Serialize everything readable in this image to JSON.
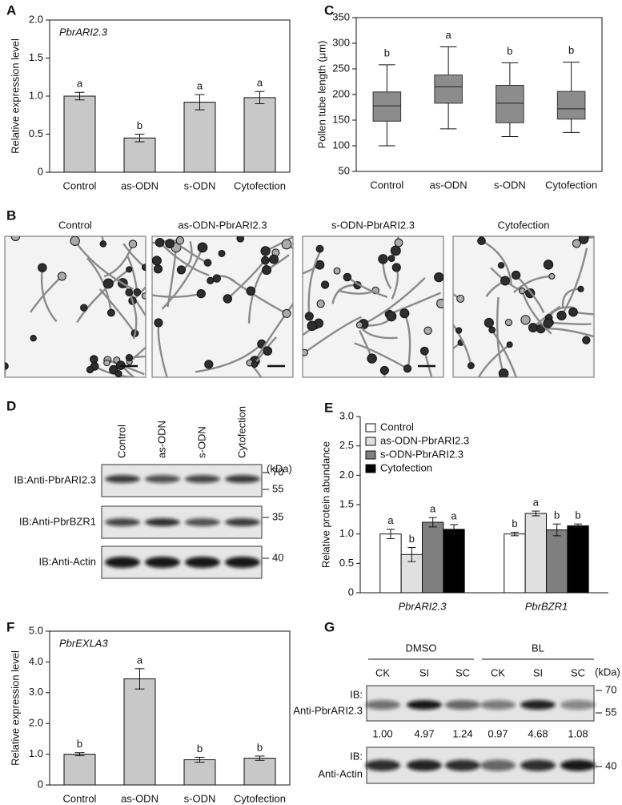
{
  "chart_data": [
    {
      "type": "bar",
      "panel": "A",
      "title": "PbrARI2.3",
      "ylabel": "Relative expression level",
      "categories": [
        "Control",
        "as-ODN",
        "s-ODN",
        "Cytofection"
      ],
      "values": [
        1.0,
        0.45,
        0.92,
        0.98
      ],
      "errors": [
        0.05,
        0.05,
        0.1,
        0.08
      ],
      "letters": [
        "a",
        "b",
        "a",
        "a"
      ],
      "color": "#c8c8c8",
      "ylim": [
        0,
        2
      ],
      "yticks": [
        0,
        0.5,
        {
          "value": 1,
          "label": "1.0"
        },
        1.5,
        {
          "value": 2,
          "label": "2.0"
        }
      ]
    },
    {
      "type": "box",
      "panel": "C",
      "ylabel": "Pollen tube length (μm)",
      "categories": [
        "Control",
        "as-ODN",
        "s-ODN",
        "Cytofection"
      ],
      "boxes": [
        {
          "whislo": 100,
          "q1": 148,
          "med": 178,
          "q3": 205,
          "whishi": 258
        },
        {
          "whislo": 133,
          "q1": 183,
          "med": 215,
          "q3": 238,
          "whishi": 293
        },
        {
          "whislo": 118,
          "q1": 145,
          "med": 183,
          "q3": 218,
          "whishi": 262
        },
        {
          "whislo": 126,
          "q1": 152,
          "med": 172,
          "q3": 206,
          "whishi": 263
        }
      ],
      "letters": [
        "b",
        "a",
        "b",
        "b"
      ],
      "color": "#8c8c8c",
      "ylim": [
        50,
        350
      ],
      "yticks": [
        50,
        100,
        150,
        200,
        250,
        300,
        350
      ]
    },
    {
      "type": "grouped_bar",
      "panel": "E",
      "ylabel": "Relative protein abundance",
      "categories": [
        "PbrARI2.3",
        "PbrBZR1"
      ],
      "legend": "upper-left",
      "series": [
        {
          "name": "Control",
          "color": "#ffffff",
          "values": [
            1.0,
            1.0
          ],
          "errors": [
            0.08,
            0.03
          ],
          "letters": [
            "a",
            "b"
          ]
        },
        {
          "name": "as-ODN-PbrARI2.3",
          "color": "#e0e0e0",
          "values": [
            0.65,
            1.35
          ],
          "errors": [
            0.12,
            0.04
          ],
          "letters": [
            "b",
            "a"
          ]
        },
        {
          "name": "s-ODN-PbrARI2.3",
          "color": "#7f7f7f",
          "values": [
            1.2,
            1.07
          ],
          "errors": [
            0.08,
            0.1
          ],
          "letters": [
            "a",
            "b"
          ]
        },
        {
          "name": "Cytofection",
          "color": "#000000",
          "values": [
            1.08,
            1.14
          ],
          "errors": [
            0.08,
            0.03
          ],
          "letters": [
            "a",
            "b"
          ]
        }
      ],
      "ylim": [
        0,
        3
      ],
      "yticks": [
        0,
        0.5,
        {
          "value": 1,
          "label": "1.0"
        },
        1.5,
        {
          "value": 2,
          "label": "2.0"
        },
        2.5,
        {
          "value": 3,
          "label": "3.0"
        }
      ]
    },
    {
      "type": "bar",
      "panel": "F",
      "title": "PbrEXLA3",
      "ylabel": "Relative expression level",
      "categories": [
        "Control",
        "as-ODN",
        "s-ODN",
        "Cytofection"
      ],
      "values": [
        1.0,
        3.45,
        0.82,
        0.87
      ],
      "errors": [
        0.05,
        0.33,
        0.08,
        0.07
      ],
      "letters": [
        "b",
        "a",
        "b",
        "b"
      ],
      "color": "#c8c8c8",
      "ylim": [
        0,
        5
      ],
      "yticks": [
        0,
        {
          "value": 1,
          "label": "1.0"
        },
        {
          "value": 2,
          "label": "2.0"
        },
        {
          "value": 3,
          "label": "3.0"
        },
        {
          "value": 4,
          "label": "4.0"
        },
        {
          "value": 5,
          "label": "5.0"
        }
      ]
    }
  ],
  "micrographs": {
    "panel": "B",
    "labels": [
      "Control",
      "as-ODN-PbrARI2.3",
      "s-ODN-PbrARI2.3",
      "Cytofection"
    ]
  },
  "blot_d": {
    "panel": "D",
    "lanes": [
      "Control",
      "as-ODN",
      "s-ODN",
      "Cytofection"
    ],
    "unit": "(kDa)",
    "rows": [
      {
        "label": "IB:Anti-PbrARI2.3",
        "markers": [
          70,
          55
        ]
      },
      {
        "label": "IB:Anti-PbrBZR1",
        "markers": [
          35
        ]
      },
      {
        "label": "IB:Anti-Actin",
        "markers": [
          40
        ]
      }
    ]
  },
  "blot_g": {
    "panel": "G",
    "groups": [
      "DMSO",
      "BL"
    ],
    "lanes": [
      "CK",
      "SI",
      "SC",
      "CK",
      "SI",
      "SC"
    ],
    "unit": "(kDa)",
    "rows": [
      {
        "label_lines": [
          "IB:",
          "Anti-PbrARI2.3"
        ],
        "markers": [
          70,
          55
        ]
      },
      {
        "label_lines": [
          "IB:",
          "Anti-Actin"
        ],
        "markers": [
          40
        ]
      }
    ],
    "quantification": [
      "1.00",
      "4.97",
      "1.24",
      "0.97",
      "4.68",
      "1.08"
    ]
  }
}
